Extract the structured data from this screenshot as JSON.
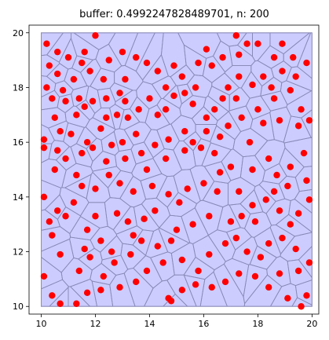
{
  "chart_data": {
    "type": "scatter",
    "title": "buffer: 0.4992247828489701, n: 200",
    "xlabel": "",
    "ylabel": "",
    "xlim": [
      9.55,
      20.25
    ],
    "ylim": [
      9.72,
      20.28
    ],
    "xticks": [
      10,
      12,
      14,
      16,
      18,
      20
    ],
    "yticks": [
      10,
      12,
      14,
      16,
      18,
      20
    ],
    "grid": false,
    "region": {
      "x": [
        10,
        20
      ],
      "y": [
        10,
        20
      ]
    },
    "colors": {
      "region_fill": "#ccccff",
      "cell_edge": "#8a8ab8",
      "points": "#ff0000"
    },
    "points": [
      [
        10.2,
        19.6
      ],
      [
        10.6,
        19.3
      ],
      [
        11.0,
        19.1
      ],
      [
        10.3,
        18.8
      ],
      [
        11.5,
        18.9
      ],
      [
        12.0,
        19.9
      ],
      [
        11.6,
        19.3
      ],
      [
        10.6,
        18.5
      ],
      [
        11.2,
        18.3
      ],
      [
        10.9,
        17.5
      ],
      [
        10.2,
        18.0
      ],
      [
        10.8,
        17.9
      ],
      [
        11.4,
        17.6
      ],
      [
        11.9,
        17.5
      ],
      [
        11.6,
        17.3
      ],
      [
        12.4,
        17.6
      ],
      [
        12.9,
        17.8
      ],
      [
        13.1,
        18.3
      ],
      [
        13.5,
        19.1
      ],
      [
        13.0,
        19.3
      ],
      [
        12.5,
        19.0
      ],
      [
        13.9,
        18.9
      ],
      [
        14.3,
        18.6
      ],
      [
        14.6,
        18.0
      ],
      [
        14.6,
        17.2
      ],
      [
        14.0,
        17.6
      ],
      [
        13.6,
        17.2
      ],
      [
        13.2,
        16.9
      ],
      [
        12.8,
        17.0
      ],
      [
        12.4,
        16.9
      ],
      [
        12.2,
        16.5
      ],
      [
        11.9,
        15.8
      ],
      [
        11.5,
        15.6
      ],
      [
        12.6,
        15.9
      ],
      [
        13.0,
        16.0
      ],
      [
        13.5,
        16.3
      ],
      [
        13.7,
        15.6
      ],
      [
        14.2,
        15.9
      ],
      [
        14.7,
        16.1
      ],
      [
        15.3,
        16.4
      ],
      [
        15.6,
        16.0
      ],
      [
        15.9,
        15.8
      ],
      [
        16.4,
        15.6
      ],
      [
        16.6,
        16.2
      ],
      [
        16.9,
        16.6
      ],
      [
        16.4,
        17.2
      ],
      [
        16.1,
        16.9
      ],
      [
        15.6,
        17.4
      ],
      [
        15.3,
        17.8
      ],
      [
        15.7,
        18.0
      ],
      [
        15.2,
        18.4
      ],
      [
        14.9,
        18.8
      ],
      [
        16.3,
        18.8
      ],
      [
        16.7,
        19.1
      ],
      [
        17.2,
        19.9
      ],
      [
        17.6,
        19.6
      ],
      [
        18.0,
        19.6
      ],
      [
        18.6,
        19.1
      ],
      [
        19.3,
        19.1
      ],
      [
        19.8,
        18.9
      ],
      [
        18.9,
        18.6
      ],
      [
        18.2,
        18.4
      ],
      [
        17.3,
        18.4
      ],
      [
        16.9,
        18.0
      ],
      [
        17.2,
        17.6
      ],
      [
        18.0,
        17.2
      ],
      [
        18.6,
        17.6
      ],
      [
        19.2,
        17.9
      ],
      [
        19.6,
        17.2
      ],
      [
        18.8,
        16.8
      ],
      [
        18.2,
        16.7
      ],
      [
        17.7,
        16.0
      ],
      [
        19.5,
        16.6
      ],
      [
        19.9,
        16.8
      ],
      [
        19.7,
        15.6
      ],
      [
        19.2,
        15.1
      ],
      [
        18.7,
        14.8
      ],
      [
        19.1,
        14.4
      ],
      [
        19.8,
        14.6
      ],
      [
        19.9,
        13.9
      ],
      [
        19.5,
        13.4
      ],
      [
        18.8,
        13.5
      ],
      [
        18.3,
        13.9
      ],
      [
        17.8,
        13.7
      ],
      [
        17.4,
        13.3
      ],
      [
        17.0,
        13.1
      ],
      [
        17.3,
        14.2
      ],
      [
        16.5,
        14.2
      ],
      [
        16.0,
        14.5
      ],
      [
        15.4,
        14.3
      ],
      [
        15.1,
        13.8
      ],
      [
        14.7,
        14.1
      ],
      [
        14.2,
        13.5
      ],
      [
        13.8,
        13.2
      ],
      [
        13.2,
        13.1
      ],
      [
        12.8,
        13.4
      ],
      [
        13.4,
        14.2
      ],
      [
        12.9,
        14.5
      ],
      [
        12.5,
        14.8
      ],
      [
        12.0,
        14.3
      ],
      [
        11.5,
        14.4
      ],
      [
        11.2,
        13.8
      ],
      [
        10.9,
        13.3
      ],
      [
        10.6,
        13.5
      ],
      [
        10.3,
        13.1
      ],
      [
        10.1,
        14.0
      ],
      [
        10.5,
        15.0
      ],
      [
        10.9,
        15.4
      ],
      [
        11.3,
        14.8
      ],
      [
        10.1,
        15.8
      ],
      [
        10.6,
        15.7
      ],
      [
        10.7,
        16.4
      ],
      [
        11.1,
        16.3
      ],
      [
        10.5,
        16.9
      ],
      [
        11.3,
        17.0
      ],
      [
        10.1,
        16.1
      ],
      [
        11.7,
        12.8
      ],
      [
        12.2,
        12.4
      ],
      [
        12.6,
        12.0
      ],
      [
        11.8,
        11.8
      ],
      [
        11.4,
        11.3
      ],
      [
        12.3,
        11.1
      ],
      [
        12.7,
        11.6
      ],
      [
        13.3,
        11.9
      ],
      [
        13.7,
        12.4
      ],
      [
        14.3,
        12.2
      ],
      [
        14.8,
        12.4
      ],
      [
        14.5,
        11.6
      ],
      [
        13.9,
        11.3
      ],
      [
        13.5,
        10.9
      ],
      [
        12.9,
        10.7
      ],
      [
        12.2,
        10.6
      ],
      [
        11.7,
        10.5
      ],
      [
        11.3,
        10.1
      ],
      [
        10.7,
        10.1
      ],
      [
        10.4,
        10.4
      ],
      [
        10.1,
        11.1
      ],
      [
        15.2,
        11.7
      ],
      [
        15.8,
        11.3
      ],
      [
        16.2,
        11.9
      ],
      [
        16.8,
        12.3
      ],
      [
        17.2,
        12.5
      ],
      [
        17.6,
        12.0
      ],
      [
        18.1,
        11.8
      ],
      [
        18.4,
        12.3
      ],
      [
        18.9,
        12.5
      ],
      [
        19.4,
        12.1
      ],
      [
        19.9,
        11.6
      ],
      [
        19.5,
        11.3
      ],
      [
        18.8,
        11.2
      ],
      [
        18.4,
        10.7
      ],
      [
        17.9,
        11.1
      ],
      [
        17.3,
        11.2
      ],
      [
        16.8,
        10.9
      ],
      [
        16.3,
        10.7
      ],
      [
        15.7,
        10.8
      ],
      [
        15.2,
        10.6
      ],
      [
        14.7,
        10.3
      ],
      [
        14.8,
        10.2
      ],
      [
        19.1,
        10.3
      ],
      [
        19.8,
        10.4
      ],
      [
        19.6,
        10.0
      ],
      [
        14.9,
        17.7
      ],
      [
        15.8,
        18.9
      ],
      [
        16.7,
        17.6
      ],
      [
        17.8,
        18.1
      ],
      [
        18.5,
        18.0
      ],
      [
        19.4,
        18.4
      ],
      [
        17.4,
        16.9
      ],
      [
        16.1,
        16.4
      ],
      [
        15.3,
        15.7
      ],
      [
        14.6,
        15.4
      ],
      [
        13.9,
        15.0
      ],
      [
        13.1,
        15.4
      ],
      [
        12.4,
        15.3
      ],
      [
        11.7,
        16.0
      ],
      [
        17.0,
        15.1
      ],
      [
        17.8,
        15.0
      ],
      [
        18.4,
        15.4
      ],
      [
        16.2,
        13.3
      ],
      [
        15.6,
        13.0
      ],
      [
        15.0,
        12.8
      ],
      [
        13.4,
        12.6
      ],
      [
        12.0,
        13.3
      ],
      [
        11.6,
        12.1
      ],
      [
        10.7,
        11.9
      ],
      [
        10.4,
        12.6
      ],
      [
        14.1,
        14.4
      ],
      [
        16.6,
        14.9
      ],
      [
        17.9,
        13.1
      ],
      [
        18.6,
        14.2
      ],
      [
        19.2,
        13.0
      ],
      [
        13.1,
        17.5
      ],
      [
        14.3,
        17.0
      ],
      [
        12.3,
        18.3
      ],
      [
        11.8,
        18.6
      ],
      [
        10.4,
        17.6
      ],
      [
        16.1,
        19.4
      ],
      [
        17.3,
        19.2
      ],
      [
        18.9,
        19.6
      ]
    ]
  }
}
